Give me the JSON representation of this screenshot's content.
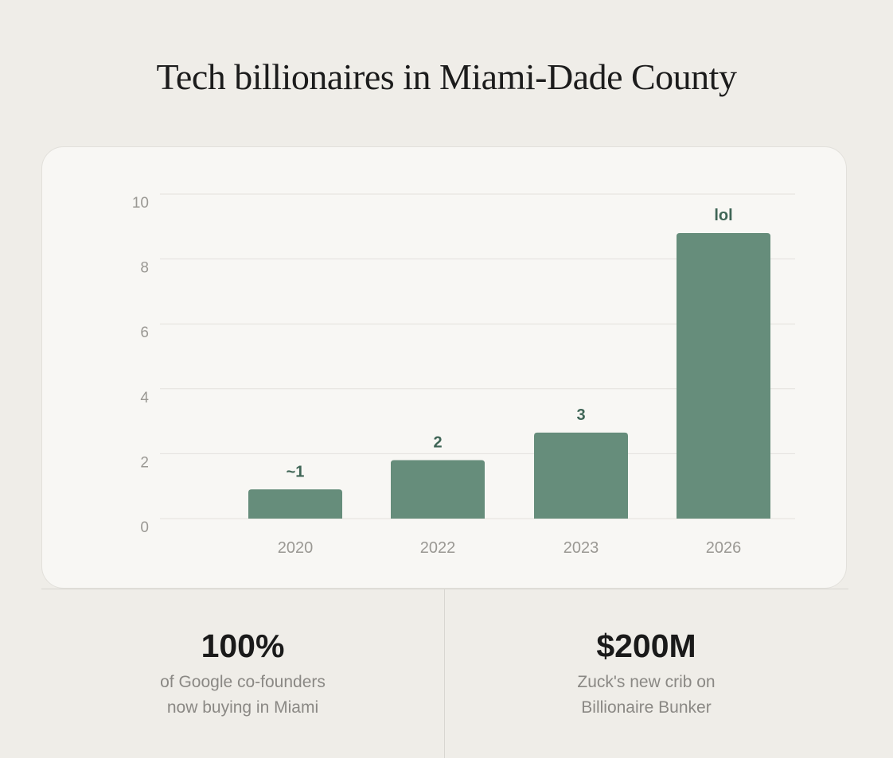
{
  "title": "Tech billionaires in Miami-Dade County",
  "colors": {
    "background": "#efede8",
    "card": "#f8f7f4",
    "bar": "#668d7b",
    "bar_label": "#3f6556",
    "tick_label": "#9a9893",
    "gridline": "#e4e2dd"
  },
  "chart_data": {
    "type": "bar",
    "title": "Tech billionaires in Miami-Dade County",
    "xlabel": "",
    "ylabel": "",
    "categories": [
      "2020",
      "2022",
      "2023",
      "2026"
    ],
    "values": [
      0.9,
      1.8,
      2.65,
      8.8
    ],
    "data_labels": [
      "~1",
      "2",
      "3",
      "lol"
    ],
    "yticks": [
      0,
      2,
      4,
      6,
      8,
      10
    ],
    "ylim": [
      0,
      10
    ],
    "grid": true,
    "legend": "none"
  },
  "stats": [
    {
      "value": "100%",
      "caption_line1": "of Google co-founders",
      "caption_line2": "now buying in Miami"
    },
    {
      "value": "$200M",
      "caption_line1": "Zuck's new crib on",
      "caption_line2": "Billionaire Bunker"
    }
  ]
}
